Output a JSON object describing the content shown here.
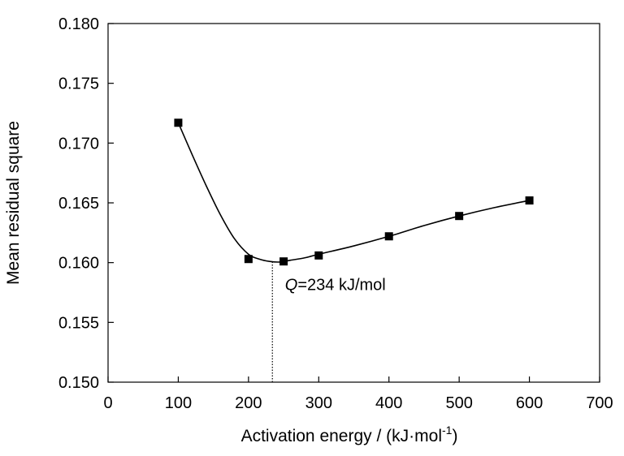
{
  "chart_data": {
    "type": "scatter",
    "title": "",
    "xlabel": "Activation energy / (kJ·mol",
    "xlabel_sup": "-1",
    "xlabel_tail": ")",
    "ylabel": "Mean residual square",
    "xlim": [
      0,
      700
    ],
    "ylim": [
      0.15,
      0.18
    ],
    "x_ticks": [
      0,
      100,
      200,
      300,
      400,
      500,
      600,
      700
    ],
    "x_tick_labels": [
      "0",
      "100",
      "200",
      "300",
      "400",
      "500",
      "600",
      "700"
    ],
    "y_ticks": [
      0.15,
      0.155,
      0.16,
      0.165,
      0.17,
      0.175,
      0.18
    ],
    "y_tick_labels": [
      "0.150",
      "0.155",
      "0.160",
      "0.165",
      "0.170",
      "0.175",
      "0.180"
    ],
    "grid": false,
    "series": [
      {
        "x": [
          100,
          200,
          250,
          300,
          400,
          500,
          600
        ],
        "y": [
          0.1717,
          0.1603,
          0.1601,
          0.1606,
          0.1622,
          0.1639,
          0.1652
        ],
        "marker": "square",
        "color": "#000000"
      }
    ],
    "fit_curve": {
      "x": [
        100,
        120,
        140,
        160,
        180,
        200,
        215,
        230,
        245,
        260,
        280,
        300,
        350,
        400,
        450,
        500,
        550,
        600
      ],
      "y": [
        0.1717,
        0.169,
        0.1664,
        0.164,
        0.162,
        0.1607,
        0.1603,
        0.1601,
        0.16005,
        0.1602,
        0.1604,
        0.1607,
        0.1614,
        0.1622,
        0.1631,
        0.1639,
        0.1646,
        0.1652
      ],
      "color": "#000000"
    },
    "annotation": {
      "x": 234,
      "y_from": 0.15,
      "y_to": 0.1601,
      "italic": "Q",
      "text": "=234 kJ/mol",
      "label_x": 252,
      "label_y": 0.1577
    }
  }
}
